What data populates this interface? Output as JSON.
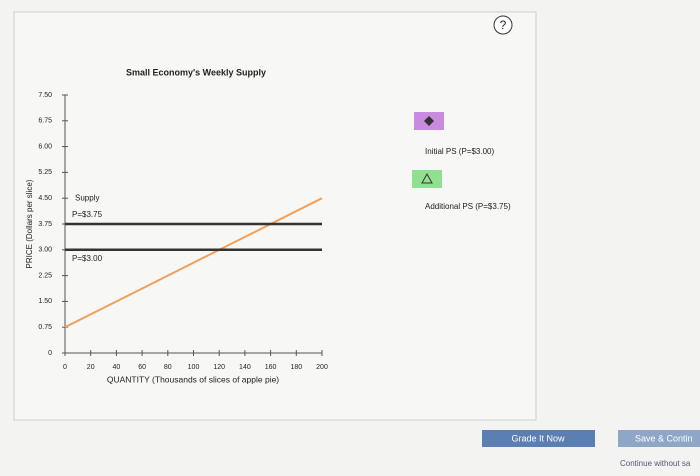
{
  "chart_data": {
    "type": "line",
    "title": "Small Economy's Weekly Supply",
    "x_label": "QUANTITY (Thousands of slices of apple pie)",
    "y_label": "PRICE (Dollars per slice)",
    "x": [
      0,
      200
    ],
    "series": [
      {
        "name": "Supply",
        "color": "#f2a05a",
        "values": [
          0.75,
          4.5
        ]
      },
      {
        "name": "P=$3.75",
        "color": "#333333",
        "values": [
          3.75,
          3.75
        ]
      },
      {
        "name": "P=$3.00",
        "color": "#333333",
        "values": [
          3,
          3
        ]
      }
    ],
    "xlim": [
      0,
      200
    ],
    "xticks": [
      0,
      20,
      40,
      60,
      80,
      100,
      120,
      140,
      160,
      180,
      200
    ],
    "ylim": [
      0,
      7.5
    ],
    "yticks": [
      0,
      {
        "value": 0.75,
        "label": "0.75"
      },
      {
        "value": 1.5,
        "label": "1.50"
      },
      {
        "value": 2.25,
        "label": "2.25"
      },
      {
        "value": 3,
        "label": "3.00"
      },
      {
        "value": 3.75,
        "label": "3.75"
      },
      {
        "value": 4.5,
        "label": "4.50"
      },
      {
        "value": 5.25,
        "label": "5.25"
      },
      {
        "value": 6,
        "label": "6.00"
      },
      {
        "value": 6.75,
        "label": "6.75"
      },
      {
        "value": 7.5,
        "label": "7.50"
      }
    ],
    "grid": false
  },
  "tools": [
    {
      "label": "Initial PS (P=$3.00)",
      "color": "#c98be0",
      "shape": "diamond"
    },
    {
      "label": "Additional PS (P=$3.75)",
      "color": "#8fe08f",
      "shape": "triangle"
    }
  ],
  "help": "?",
  "buttons": {
    "grade": "Grade It Now",
    "save": "Save & Contin",
    "continue": "Continue without sa"
  }
}
